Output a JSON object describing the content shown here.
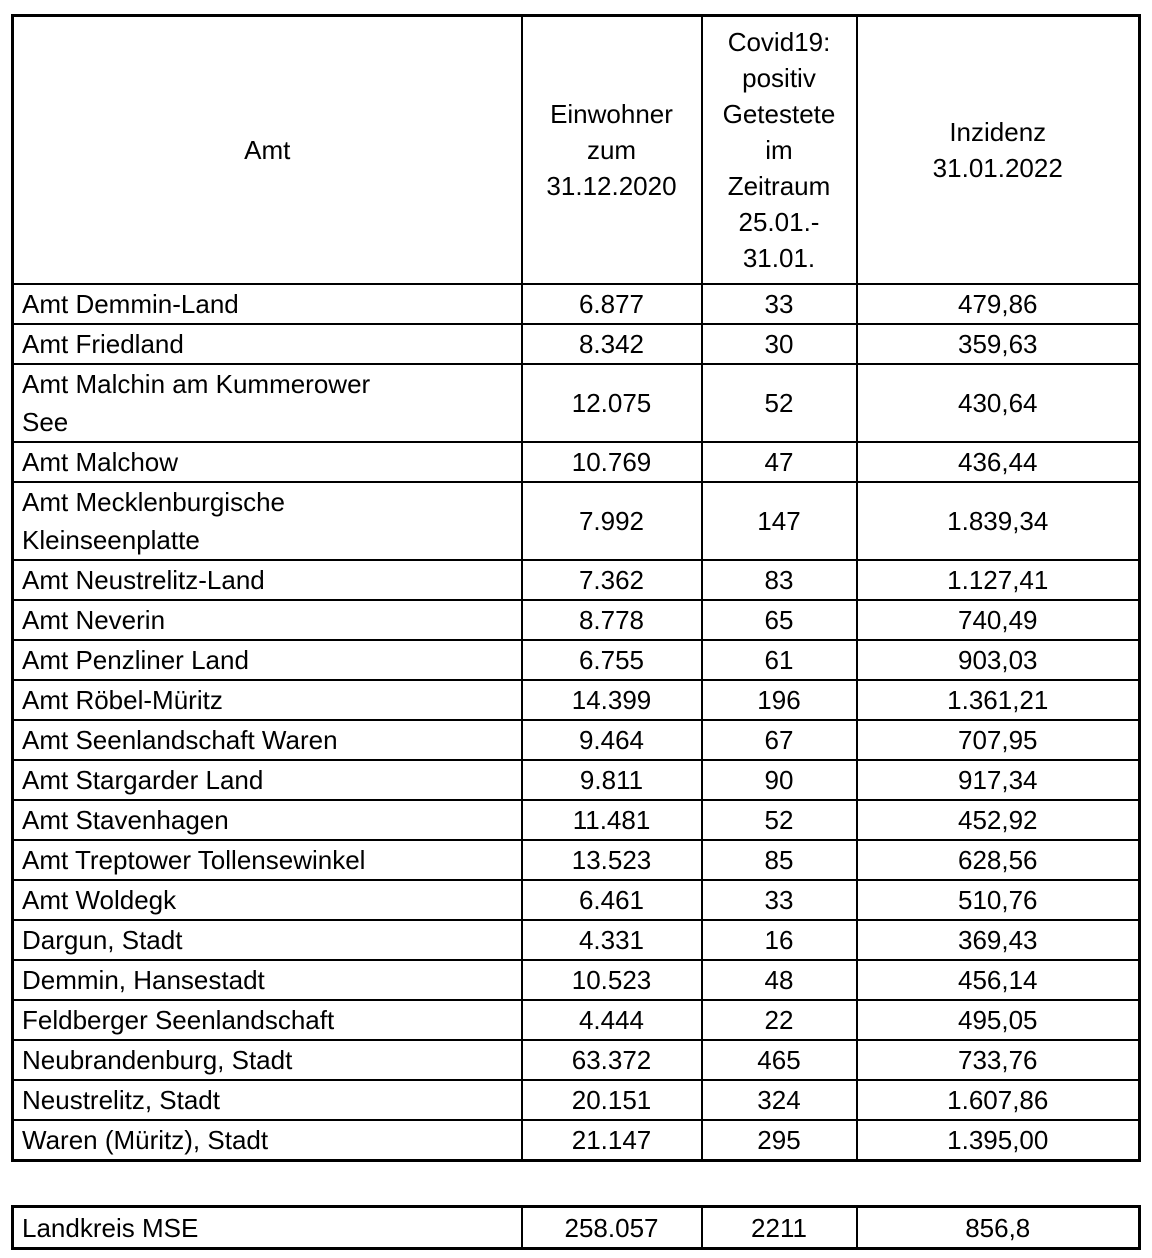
{
  "page": {
    "background": "#ffffff",
    "border_color": "#000000"
  },
  "table": {
    "headers": [
      {
        "label": "Amt"
      },
      {
        "label": "Einwohner\nzum\n31.12.2020"
      },
      {
        "label": "Covid19:\npositiv\nGetestete\nim\nZeitraum\n25.01.-\n31.01."
      },
      {
        "label": "Inzidenz\n31.01.2022"
      }
    ],
    "rows": [
      {
        "amt": "Amt Demmin-Land",
        "einwohner": "6.877",
        "positiv": "33",
        "inzidenz": "479,86"
      },
      {
        "amt": "Amt Friedland",
        "einwohner": "8.342",
        "positiv": "30",
        "inzidenz": "359,63"
      },
      {
        "amt": "Amt Malchin am Kummerower\nSee",
        "einwohner": "12.075",
        "positiv": "52",
        "inzidenz": "430,64"
      },
      {
        "amt": "Amt Malchow",
        "einwohner": "10.769",
        "positiv": "47",
        "inzidenz": "436,44"
      },
      {
        "amt": "Amt Mecklenburgische\nKleinseenplatte",
        "einwohner": "7.992",
        "positiv": "147",
        "inzidenz": "1.839,34"
      },
      {
        "amt": "Amt Neustrelitz-Land",
        "einwohner": "7.362",
        "positiv": "83",
        "inzidenz": "1.127,41"
      },
      {
        "amt": "Amt Neverin",
        "einwohner": "8.778",
        "positiv": "65",
        "inzidenz": "740,49"
      },
      {
        "amt": "Amt Penzliner Land",
        "einwohner": "6.755",
        "positiv": "61",
        "inzidenz": "903,03"
      },
      {
        "amt": "Amt Röbel-Müritz",
        "einwohner": "14.399",
        "positiv": "196",
        "inzidenz": "1.361,21"
      },
      {
        "amt": "Amt Seenlandschaft Waren",
        "einwohner": "9.464",
        "positiv": "67",
        "inzidenz": "707,95"
      },
      {
        "amt": "Amt Stargarder Land",
        "einwohner": "9.811",
        "positiv": "90",
        "inzidenz": "917,34"
      },
      {
        "amt": "Amt Stavenhagen",
        "einwohner": "11.481",
        "positiv": "52",
        "inzidenz": "452,92"
      },
      {
        "amt": "Amt Treptower Tollensewinkel",
        "einwohner": "13.523",
        "positiv": "85",
        "inzidenz": "628,56"
      },
      {
        "amt": "Amt Woldegk",
        "einwohner": "6.461",
        "positiv": "33",
        "inzidenz": "510,76"
      },
      {
        "amt": "Dargun, Stadt",
        "einwohner": "4.331",
        "positiv": "16",
        "inzidenz": "369,43"
      },
      {
        "amt": "Demmin, Hansestadt",
        "einwohner": "10.523",
        "positiv": "48",
        "inzidenz": "456,14"
      },
      {
        "amt": "Feldberger Seenlandschaft",
        "einwohner": "4.444",
        "positiv": "22",
        "inzidenz": "495,05"
      },
      {
        "amt": "Neubrandenburg, Stadt",
        "einwohner": "63.372",
        "positiv": "465",
        "inzidenz": "733,76"
      },
      {
        "amt": "Neustrelitz, Stadt",
        "einwohner": "20.151",
        "positiv": "324",
        "inzidenz": "1.607,86"
      },
      {
        "amt": "Waren (Müritz), Stadt",
        "einwohner": "21.147",
        "positiv": "295",
        "inzidenz": "1.395,00"
      }
    ],
    "summary": {
      "amt": "Landkreis MSE",
      "einwohner": "258.057",
      "positiv": "2211",
      "inzidenz": "856,8"
    }
  }
}
